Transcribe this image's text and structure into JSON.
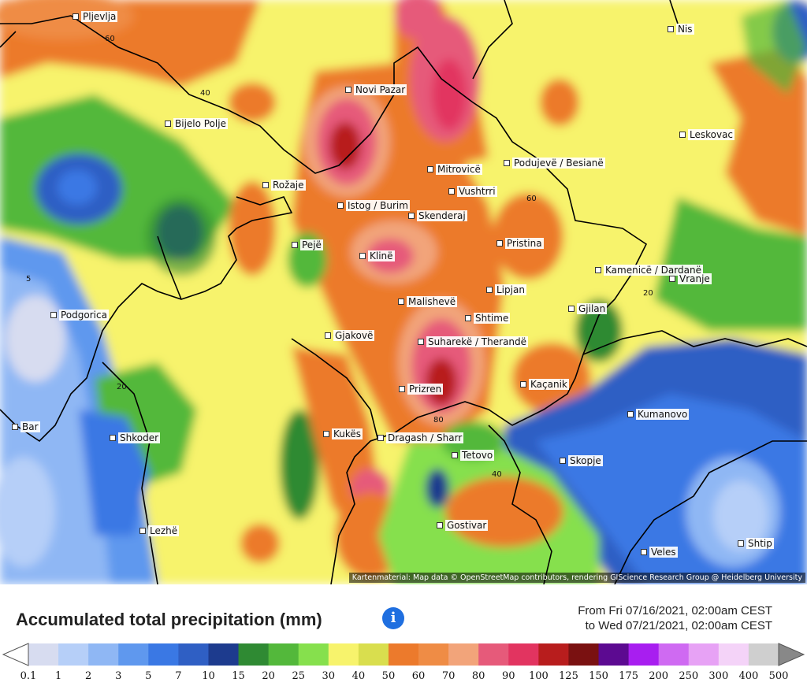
{
  "legend": {
    "title": "Accumulated total precipitation (mm)",
    "info_icon": "info-icon",
    "date_from": "From Fri 07/16/2021, 02:00am CEST",
    "date_to": "to Wed 07/21/2021, 02:00am CEST",
    "scale_labels": [
      "0.1",
      "1",
      "2",
      "3",
      "5",
      "7",
      "10",
      "15",
      "20",
      "25",
      "30",
      "40",
      "50",
      "60",
      "70",
      "80",
      "90",
      "100",
      "125",
      "150",
      "175",
      "200",
      "250",
      "300",
      "400",
      "500"
    ],
    "scale_colors": [
      "#d7dcf0",
      "#b6cff8",
      "#8fb7f4",
      "#5f98ee",
      "#3a78e4",
      "#2f5fc4",
      "#1d3b8e",
      "#2f8a33",
      "#53b83b",
      "#86e04d",
      "#f7f36c",
      "#d9de4e",
      "#ec7a2c",
      "#ef8c45",
      "#f2a47a",
      "#e65a7a",
      "#e23460",
      "#b81d1d",
      "#7a1111",
      "#5c0a91",
      "#a81ef0",
      "#cf6af2",
      "#e7a2f5",
      "#f4d3f8",
      "#cfcfcf"
    ]
  },
  "attribution": "Kartenmaterial: Map data © OpenStreetMap contributors, rendering GIScience Research Group @ Heidelberg University",
  "cities": [
    "Pljevlja",
    "Nis",
    "Novi Pazar",
    "Bijelo Polje",
    "Leskovac",
    "Mitrovicë",
    "Podujevë / Besianë",
    "Rožaje",
    "Vushtrri",
    "Istog / Burim",
    "Skenderaj",
    "Pejë",
    "Pristina",
    "Klinë",
    "Kamenicë / Dardanë",
    "Vranje",
    "Lipjan",
    "Malishevë",
    "Gjilan",
    "Podgorica",
    "Shtime",
    "Gjakovë",
    "Suharekë / Therandë",
    "Kaçanik",
    "Prizren",
    "Kumanovo",
    "Bar",
    "Kukës",
    "Dragash / Sharr",
    "Shkoder",
    "Tetovo",
    "Skopje",
    "Gostivar",
    "Lezhë",
    "Veles",
    "Shtip"
  ],
  "contour_labels": [
    "60",
    "40",
    "60",
    "5",
    "20",
    "20",
    "80",
    "40"
  ]
}
